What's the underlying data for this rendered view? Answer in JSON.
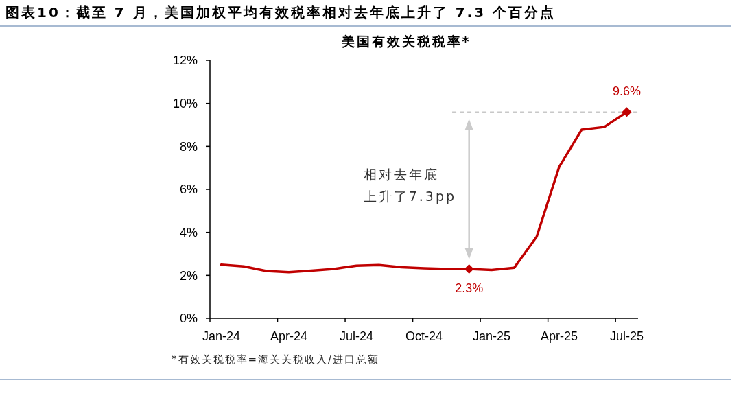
{
  "chart_data": {
    "type": "line",
    "title": "图表10：截至 7 月，美国加权平均有效税率相对去年底上升了 7.3 个百分点",
    "subtitle": "美国有效关税税率*",
    "categories": [
      "Jan-24",
      null,
      null,
      "Apr-24",
      null,
      null,
      "Jul-24",
      null,
      null,
      "Oct-24",
      null,
      null,
      "Jan-25",
      null,
      null,
      "Apr-25",
      null,
      null,
      "Jul-25"
    ],
    "series": [
      {
        "color": "#c00000",
        "values": [
          2.5,
          2.42,
          2.2,
          2.15,
          2.22,
          2.3,
          2.45,
          2.48,
          2.38,
          2.33,
          2.3,
          2.3,
          2.25,
          2.35,
          3.8,
          7.05,
          8.78,
          8.9,
          9.6
        ],
        "value_labels": [
          null,
          null,
          null,
          null,
          null,
          null,
          null,
          null,
          null,
          null,
          null,
          "2.3%",
          null,
          null,
          null,
          null,
          null,
          null,
          "9.6%"
        ]
      }
    ],
    "ylim": [
      0,
      12
    ],
    "yticks": [
      {
        "value": 0,
        "label": "0%"
      },
      {
        "value": 2,
        "label": "2%"
      },
      {
        "value": 4,
        "label": "4%"
      },
      {
        "value": 6,
        "label": "6%"
      },
      {
        "value": 8,
        "label": "8%"
      },
      {
        "value": 10,
        "label": "10%"
      },
      {
        "value": 12,
        "label": "12%"
      }
    ],
    "line_style": "solid",
    "ref_lines": [
      {
        "axis": "y",
        "value": 9.6,
        "color": "#c8c8c8",
        "line_style": "dashed"
      }
    ],
    "annotations": [
      "相对去年底上升了7.3pp",
      "*有效关税税率=海关关税收入/进口总额"
    ]
  }
}
